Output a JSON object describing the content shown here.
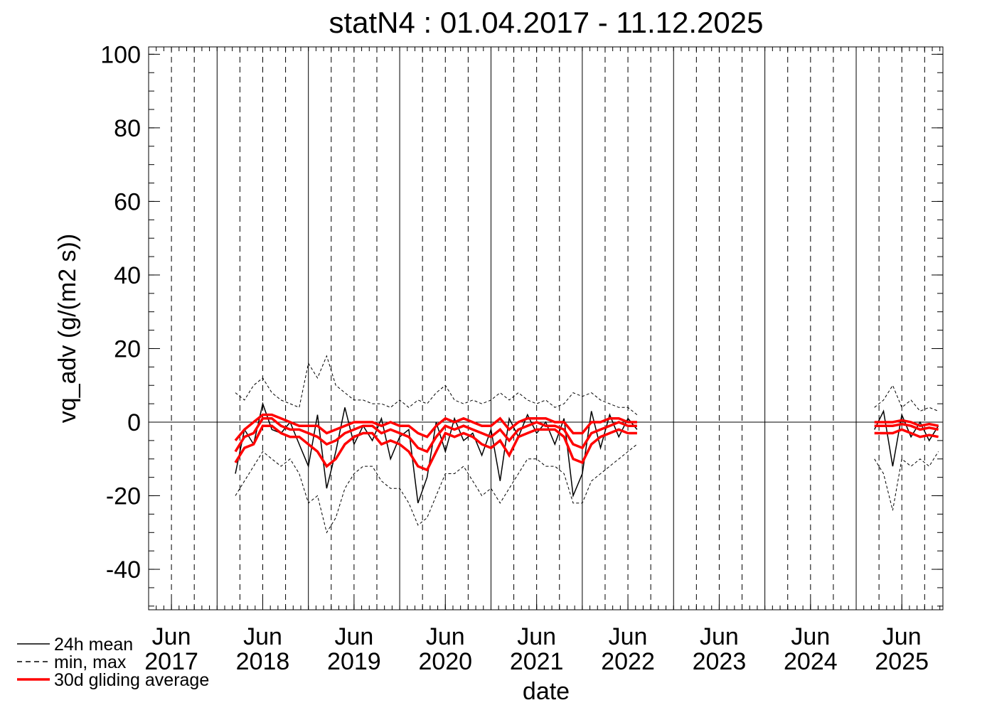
{
  "chart_data": {
    "type": "line",
    "title": "statN4 : 01.04.2017 - 11.12.2025",
    "x_label": "date",
    "y_label": "vq_adv (g/(m2 s))",
    "xlim": [
      2017.25,
      2025.95
    ],
    "ylim": [
      -51,
      102
    ],
    "yticks": [
      -40,
      -20,
      0,
      20,
      40,
      60,
      80,
      100
    ],
    "xticks": [
      {
        "value": 2017.5,
        "label": "Jun 2017"
      },
      {
        "value": 2018.5,
        "label": "Jun 2018"
      },
      {
        "value": 2019.5,
        "label": "Jun 2019"
      },
      {
        "value": 2020.5,
        "label": "Jun 2020"
      },
      {
        "value": 2021.5,
        "label": "Jun 2021"
      },
      {
        "value": 2022.5,
        "label": "Jun 2022"
      },
      {
        "value": 2023.5,
        "label": "Jun 2023"
      },
      {
        "value": 2024.5,
        "label": "Jun 2024"
      },
      {
        "value": 2025.5,
        "label": "Jun 2025"
      }
    ],
    "zero_line": true,
    "x": [
      2018.2,
      2018.3,
      2018.4,
      2018.5,
      2018.6,
      2018.7,
      2018.8,
      2018.9,
      2019.0,
      2019.1,
      2019.2,
      2019.3,
      2019.4,
      2019.5,
      2019.6,
      2019.7,
      2019.8,
      2019.9,
      2020.0,
      2020.1,
      2020.2,
      2020.3,
      2020.4,
      2020.5,
      2020.6,
      2020.7,
      2020.8,
      2020.9,
      2021.0,
      2021.1,
      2021.2,
      2021.3,
      2021.4,
      2021.5,
      2021.6,
      2021.7,
      2021.8,
      2021.9,
      2022.0,
      2022.1,
      2022.2,
      2022.3,
      2022.4,
      2022.5,
      2022.6,
      null,
      2025.2,
      2025.3,
      2025.4,
      2025.5,
      2025.6,
      2025.7,
      2025.8,
      2025.9
    ],
    "series": [
      {
        "name": "24h mean",
        "color": "#000000",
        "style": "solid",
        "values": [
          -14,
          -2,
          -6,
          5,
          -2,
          -3,
          0,
          -6,
          -12,
          2,
          -18,
          -8,
          4,
          -6,
          -1,
          -5,
          1,
          -10,
          -4,
          -2,
          -22,
          -15,
          0,
          -8,
          1,
          -5,
          -3,
          -9,
          -2,
          -16,
          1,
          -4,
          2,
          -3,
          0,
          -6,
          1,
          -20,
          -14,
          3,
          -7,
          2,
          -4,
          1,
          -2,
          null,
          -2,
          3,
          -12,
          2,
          -4,
          0,
          -5,
          -1
        ]
      },
      {
        "name": "min, max",
        "color": "#000000",
        "style": "dashed",
        "min": [
          -20,
          -16,
          -12,
          -8,
          -10,
          -12,
          -10,
          -14,
          -22,
          -20,
          -30,
          -26,
          -18,
          -14,
          -12,
          -12,
          -16,
          -18,
          -18,
          -22,
          -28,
          -26,
          -20,
          -14,
          -14,
          -12,
          -16,
          -20,
          -18,
          -22,
          -18,
          -14,
          -10,
          -10,
          -12,
          -12,
          -14,
          -22,
          -22,
          -16,
          -14,
          -12,
          -10,
          -8,
          -6,
          null,
          -10,
          -14,
          -24,
          -10,
          -12,
          -10,
          -12,
          -8
        ],
        "max": [
          8,
          6,
          10,
          12,
          8,
          6,
          5,
          4,
          16,
          12,
          18,
          10,
          8,
          6,
          6,
          5,
          5,
          4,
          6,
          4,
          6,
          5,
          8,
          10,
          6,
          5,
          6,
          5,
          6,
          8,
          6,
          8,
          6,
          5,
          6,
          4,
          5,
          8,
          7,
          8,
          6,
          5,
          4,
          4,
          2,
          null,
          4,
          6,
          10,
          4,
          6,
          3,
          4,
          3
        ]
      },
      {
        "name": "30d gliding average",
        "color": "#ff0000",
        "style": "thick",
        "values": [
          -8,
          -4,
          -3,
          1,
          1,
          -1,
          -2,
          -2,
          -3,
          -4,
          -6,
          -5,
          -3,
          -2,
          -1,
          -1,
          -3,
          -2,
          -3,
          -4,
          -7,
          -8,
          -4,
          -1,
          -2,
          -1,
          -2,
          -3,
          -4,
          -2,
          -5,
          -2,
          -1,
          0,
          -1,
          -1,
          -2,
          -6,
          -7,
          -3,
          -2,
          -1,
          0,
          -1,
          -1,
          null,
          -1,
          -1,
          -1,
          -0.5,
          -1,
          -2,
          -1.5,
          -2
        ],
        "upper": [
          -5,
          -2,
          0,
          2,
          2,
          1,
          0,
          -1,
          -1,
          -1,
          -3,
          -2,
          -1,
          0,
          0,
          0,
          -1,
          0,
          -1,
          -1,
          -3,
          -4,
          -1,
          1,
          0,
          1,
          0,
          -1,
          -1,
          1,
          -2,
          0,
          1,
          1,
          1,
          0,
          0,
          -3,
          -3,
          0,
          0,
          1,
          1,
          0,
          0,
          null,
          0,
          0,
          0,
          0.5,
          0,
          -1,
          -0.5,
          -1
        ],
        "lower": [
          -11,
          -7,
          -6,
          -1,
          -1,
          -3,
          -4,
          -4,
          -6,
          -8,
          -12,
          -10,
          -6,
          -4,
          -3,
          -3,
          -6,
          -5,
          -6,
          -8,
          -12,
          -13,
          -8,
          -3,
          -4,
          -3,
          -4,
          -6,
          -7,
          -5,
          -9,
          -4,
          -3,
          -2,
          -2,
          -2,
          -4,
          -10,
          -11,
          -6,
          -4,
          -3,
          -2,
          -3,
          -3,
          null,
          -3,
          -3,
          -3,
          -2,
          -3,
          -4,
          -3.5,
          -4
        ]
      }
    ]
  }
}
